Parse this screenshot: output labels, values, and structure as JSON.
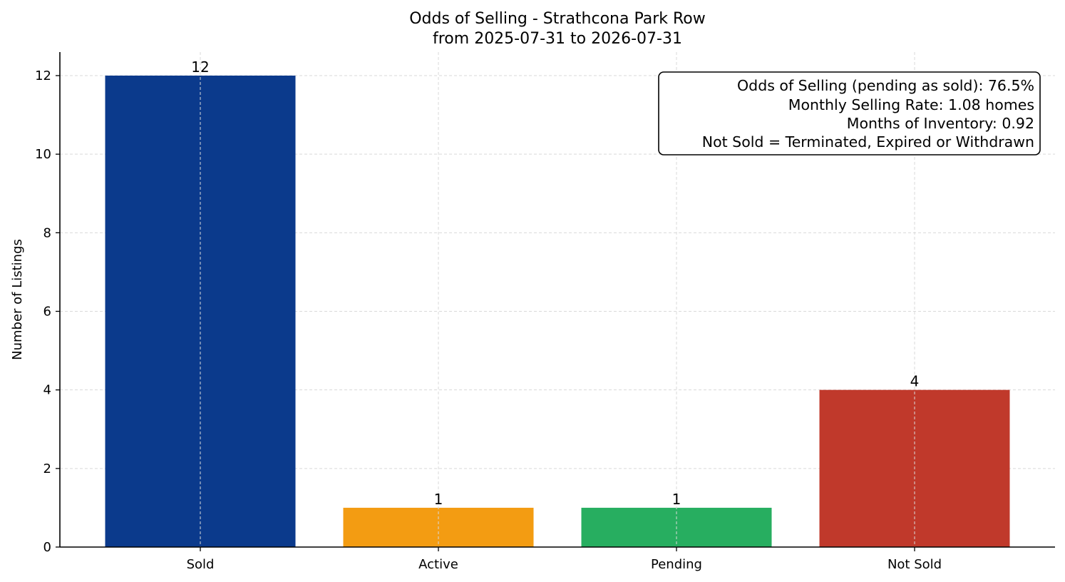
{
  "chart_data": {
    "type": "bar",
    "title": "Odds of Selling - Strathcona Park Row",
    "subtitle": "from 2025-07-31 to 2026-07-31",
    "xlabel": "",
    "ylabel": "Number of Listings",
    "categories": [
      "Sold",
      "Active",
      "Pending",
      "Not Sold"
    ],
    "values": [
      12,
      1,
      1,
      4
    ],
    "value_labels": [
      "12",
      "1",
      "1",
      "4"
    ],
    "colors": [
      "#0b3a8c",
      "#f39c12",
      "#27ae60",
      "#c0392b"
    ],
    "ylim": [
      0,
      12.6
    ],
    "yticks": [
      0,
      2,
      4,
      6,
      8,
      10,
      12
    ],
    "grid": true,
    "annotation_box": {
      "placement": "top-right",
      "lines": [
        "Odds of Selling (pending as sold): 76.5%",
        "Monthly Selling Rate: 1.08 homes",
        "Months of Inventory: 0.92",
        "Not Sold = Terminated, Expired or Withdrawn"
      ]
    }
  }
}
